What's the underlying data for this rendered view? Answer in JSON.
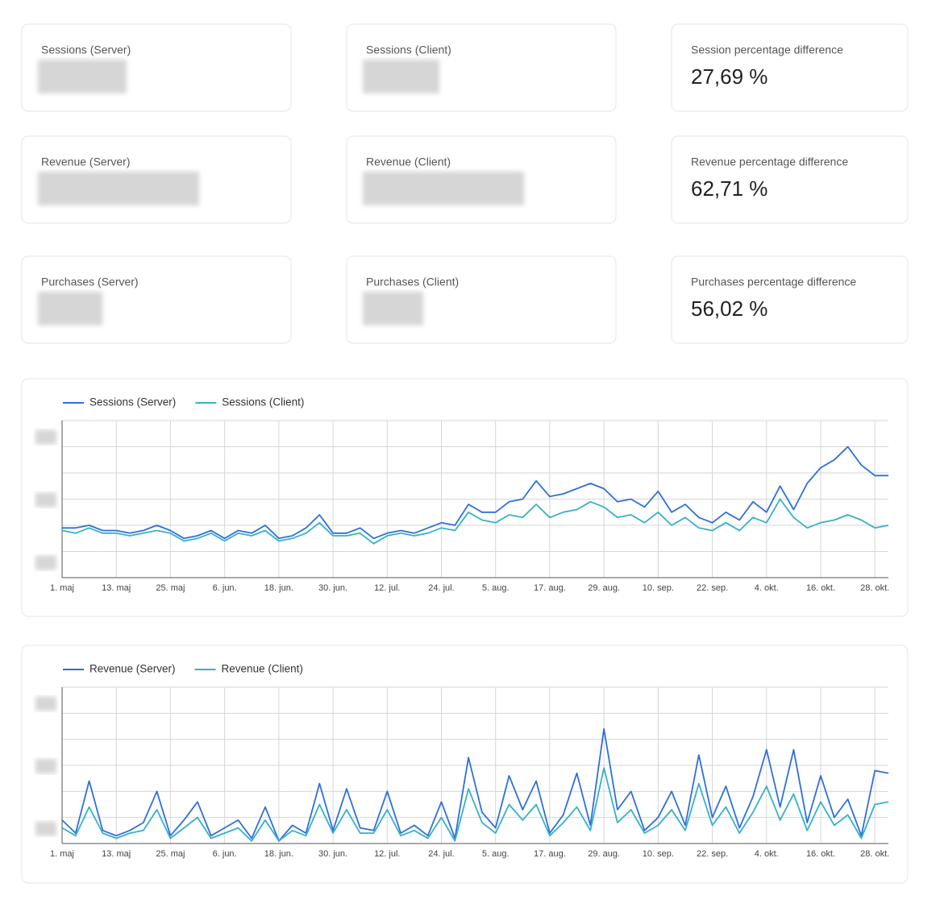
{
  "kpis": [
    {
      "label": "Sessions (Server)"
    },
    {
      "label": "Sessions (Client)"
    },
    {
      "label": "Session percentage difference",
      "value": "27,69 %"
    },
    {
      "label": "Revenue (Server)"
    },
    {
      "label": "Revenue (Client)"
    },
    {
      "label": "Revenue percentage difference",
      "value": "62,71 %"
    },
    {
      "label": "Purchases (Server)"
    },
    {
      "label": "Purchases (Client)"
    },
    {
      "label": "Purchases percentage difference",
      "value": "56,02 %"
    }
  ],
  "chart_data": [
    {
      "type": "line",
      "x": [
        "1. maj",
        null,
        null,
        null,
        "13. maj",
        null,
        null,
        null,
        "25. maj",
        null,
        null,
        null,
        "6. jun.",
        null,
        null,
        null,
        "18. jun.",
        null,
        null,
        null,
        "30. jun.",
        null,
        null,
        null,
        "12. jul.",
        null,
        null,
        null,
        "24. jul.",
        null,
        null,
        null,
        "5. aug.",
        null,
        null,
        null,
        "17. aug.",
        null,
        null,
        null,
        "29. aug.",
        null,
        null,
        null,
        "10. sep.",
        null,
        null,
        null,
        "22. sep.",
        null,
        null,
        null,
        "4. okt.",
        null,
        null,
        null,
        "16. okt.",
        null,
        null,
        null,
        "28. okt.",
        null
      ],
      "series": [
        {
          "name": "Sessions (Server)",
          "color": "#2f6fdc",
          "values": [
            1.9,
            1.9,
            2.0,
            1.8,
            1.8,
            1.7,
            1.8,
            2.0,
            1.8,
            1.5,
            1.6,
            1.8,
            1.5,
            1.8,
            1.7,
            2.0,
            1.5,
            1.6,
            1.9,
            2.4,
            1.7,
            1.7,
            1.9,
            1.5,
            1.7,
            1.8,
            1.7,
            1.9,
            2.1,
            2.0,
            2.8,
            2.5,
            2.5,
            2.9,
            3.0,
            3.7,
            3.1,
            3.2,
            3.4,
            3.6,
            3.4,
            2.9,
            3.0,
            2.7,
            3.3,
            2.5,
            2.8,
            2.3,
            2.1,
            2.5,
            2.2,
            2.9,
            2.5,
            3.5,
            2.6,
            3.6,
            4.2,
            4.5,
            5.0,
            4.3,
            3.9,
            3.9
          ]
        },
        {
          "name": "Sessions (Client)",
          "color": "#36b1c6",
          "values": [
            1.8,
            1.7,
            1.9,
            1.7,
            1.7,
            1.6,
            1.7,
            1.8,
            1.7,
            1.4,
            1.5,
            1.7,
            1.4,
            1.7,
            1.6,
            1.8,
            1.4,
            1.5,
            1.7,
            2.1,
            1.6,
            1.6,
            1.7,
            1.3,
            1.6,
            1.7,
            1.6,
            1.7,
            1.9,
            1.8,
            2.5,
            2.2,
            2.1,
            2.4,
            2.3,
            2.8,
            2.3,
            2.5,
            2.6,
            2.9,
            2.7,
            2.3,
            2.4,
            2.1,
            2.5,
            2.0,
            2.3,
            1.9,
            1.8,
            2.1,
            1.8,
            2.3,
            2.1,
            3.0,
            2.3,
            1.9,
            2.1,
            2.2,
            2.4,
            2.2,
            1.9,
            2.0
          ]
        }
      ],
      "ylim": [
        0,
        6
      ],
      "yticks": [
        0,
        1,
        2,
        3,
        4,
        5,
        6
      ],
      "grid": true,
      "legend": "top-left"
    },
    {
      "type": "line",
      "x": [
        "1. maj",
        null,
        null,
        null,
        "13. maj",
        null,
        null,
        null,
        "25. maj",
        null,
        null,
        null,
        "6. jun.",
        null,
        null,
        null,
        "18. jun.",
        null,
        null,
        null,
        "30. jun.",
        null,
        null,
        null,
        "12. jul.",
        null,
        null,
        null,
        "24. jul.",
        null,
        null,
        null,
        "5. aug.",
        null,
        null,
        null,
        "17. aug.",
        null,
        null,
        null,
        "29. aug.",
        null,
        null,
        null,
        "10. sep.",
        null,
        null,
        null,
        "22. sep.",
        null,
        null,
        null,
        "4. okt.",
        null,
        null,
        null,
        "16. okt.",
        null,
        null,
        null,
        "28. okt.",
        null
      ],
      "series": [
        {
          "name": "Revenue (Server)",
          "color": "#2f6fdc",
          "values": [
            0.9,
            0.4,
            2.4,
            0.5,
            0.3,
            0.5,
            0.8,
            2.0,
            0.3,
            0.9,
            1.6,
            0.3,
            0.6,
            0.9,
            0.2,
            1.4,
            0.1,
            0.7,
            0.4,
            2.3,
            0.5,
            2.1,
            0.6,
            0.5,
            2.0,
            0.4,
            0.7,
            0.3,
            1.6,
            0.2,
            3.3,
            1.2,
            0.6,
            2.6,
            1.3,
            2.4,
            0.4,
            1.1,
            2.7,
            0.7,
            4.4,
            1.3,
            2.0,
            0.5,
            1.0,
            2.0,
            0.7,
            3.4,
            1.0,
            2.2,
            0.6,
            1.8,
            3.6,
            1.4,
            3.6,
            0.8,
            2.6,
            1.0,
            1.7,
            0.3,
            2.8,
            2.7
          ]
        },
        {
          "name": "Revenue (Client)",
          "color": "#36b1c6",
          "values": [
            0.6,
            0.3,
            1.4,
            0.4,
            0.2,
            0.4,
            0.5,
            1.3,
            0.2,
            0.6,
            1.0,
            0.2,
            0.4,
            0.6,
            0.1,
            0.9,
            0.1,
            0.5,
            0.3,
            1.5,
            0.4,
            1.3,
            0.4,
            0.4,
            1.3,
            0.3,
            0.5,
            0.2,
            1.0,
            0.1,
            2.1,
            0.8,
            0.4,
            1.5,
            0.9,
            1.5,
            0.3,
            0.8,
            1.4,
            0.5,
            2.9,
            0.8,
            1.3,
            0.4,
            0.7,
            1.3,
            0.5,
            2.3,
            0.7,
            1.4,
            0.4,
            1.2,
            2.2,
            0.9,
            1.9,
            0.5,
            1.6,
            0.7,
            1.1,
            0.2,
            1.5,
            1.6
          ]
        }
      ],
      "ylim": [
        0,
        6
      ],
      "yticks": [
        0,
        1,
        2,
        3,
        4,
        5,
        6
      ],
      "grid": true,
      "legend": "top-left"
    }
  ]
}
